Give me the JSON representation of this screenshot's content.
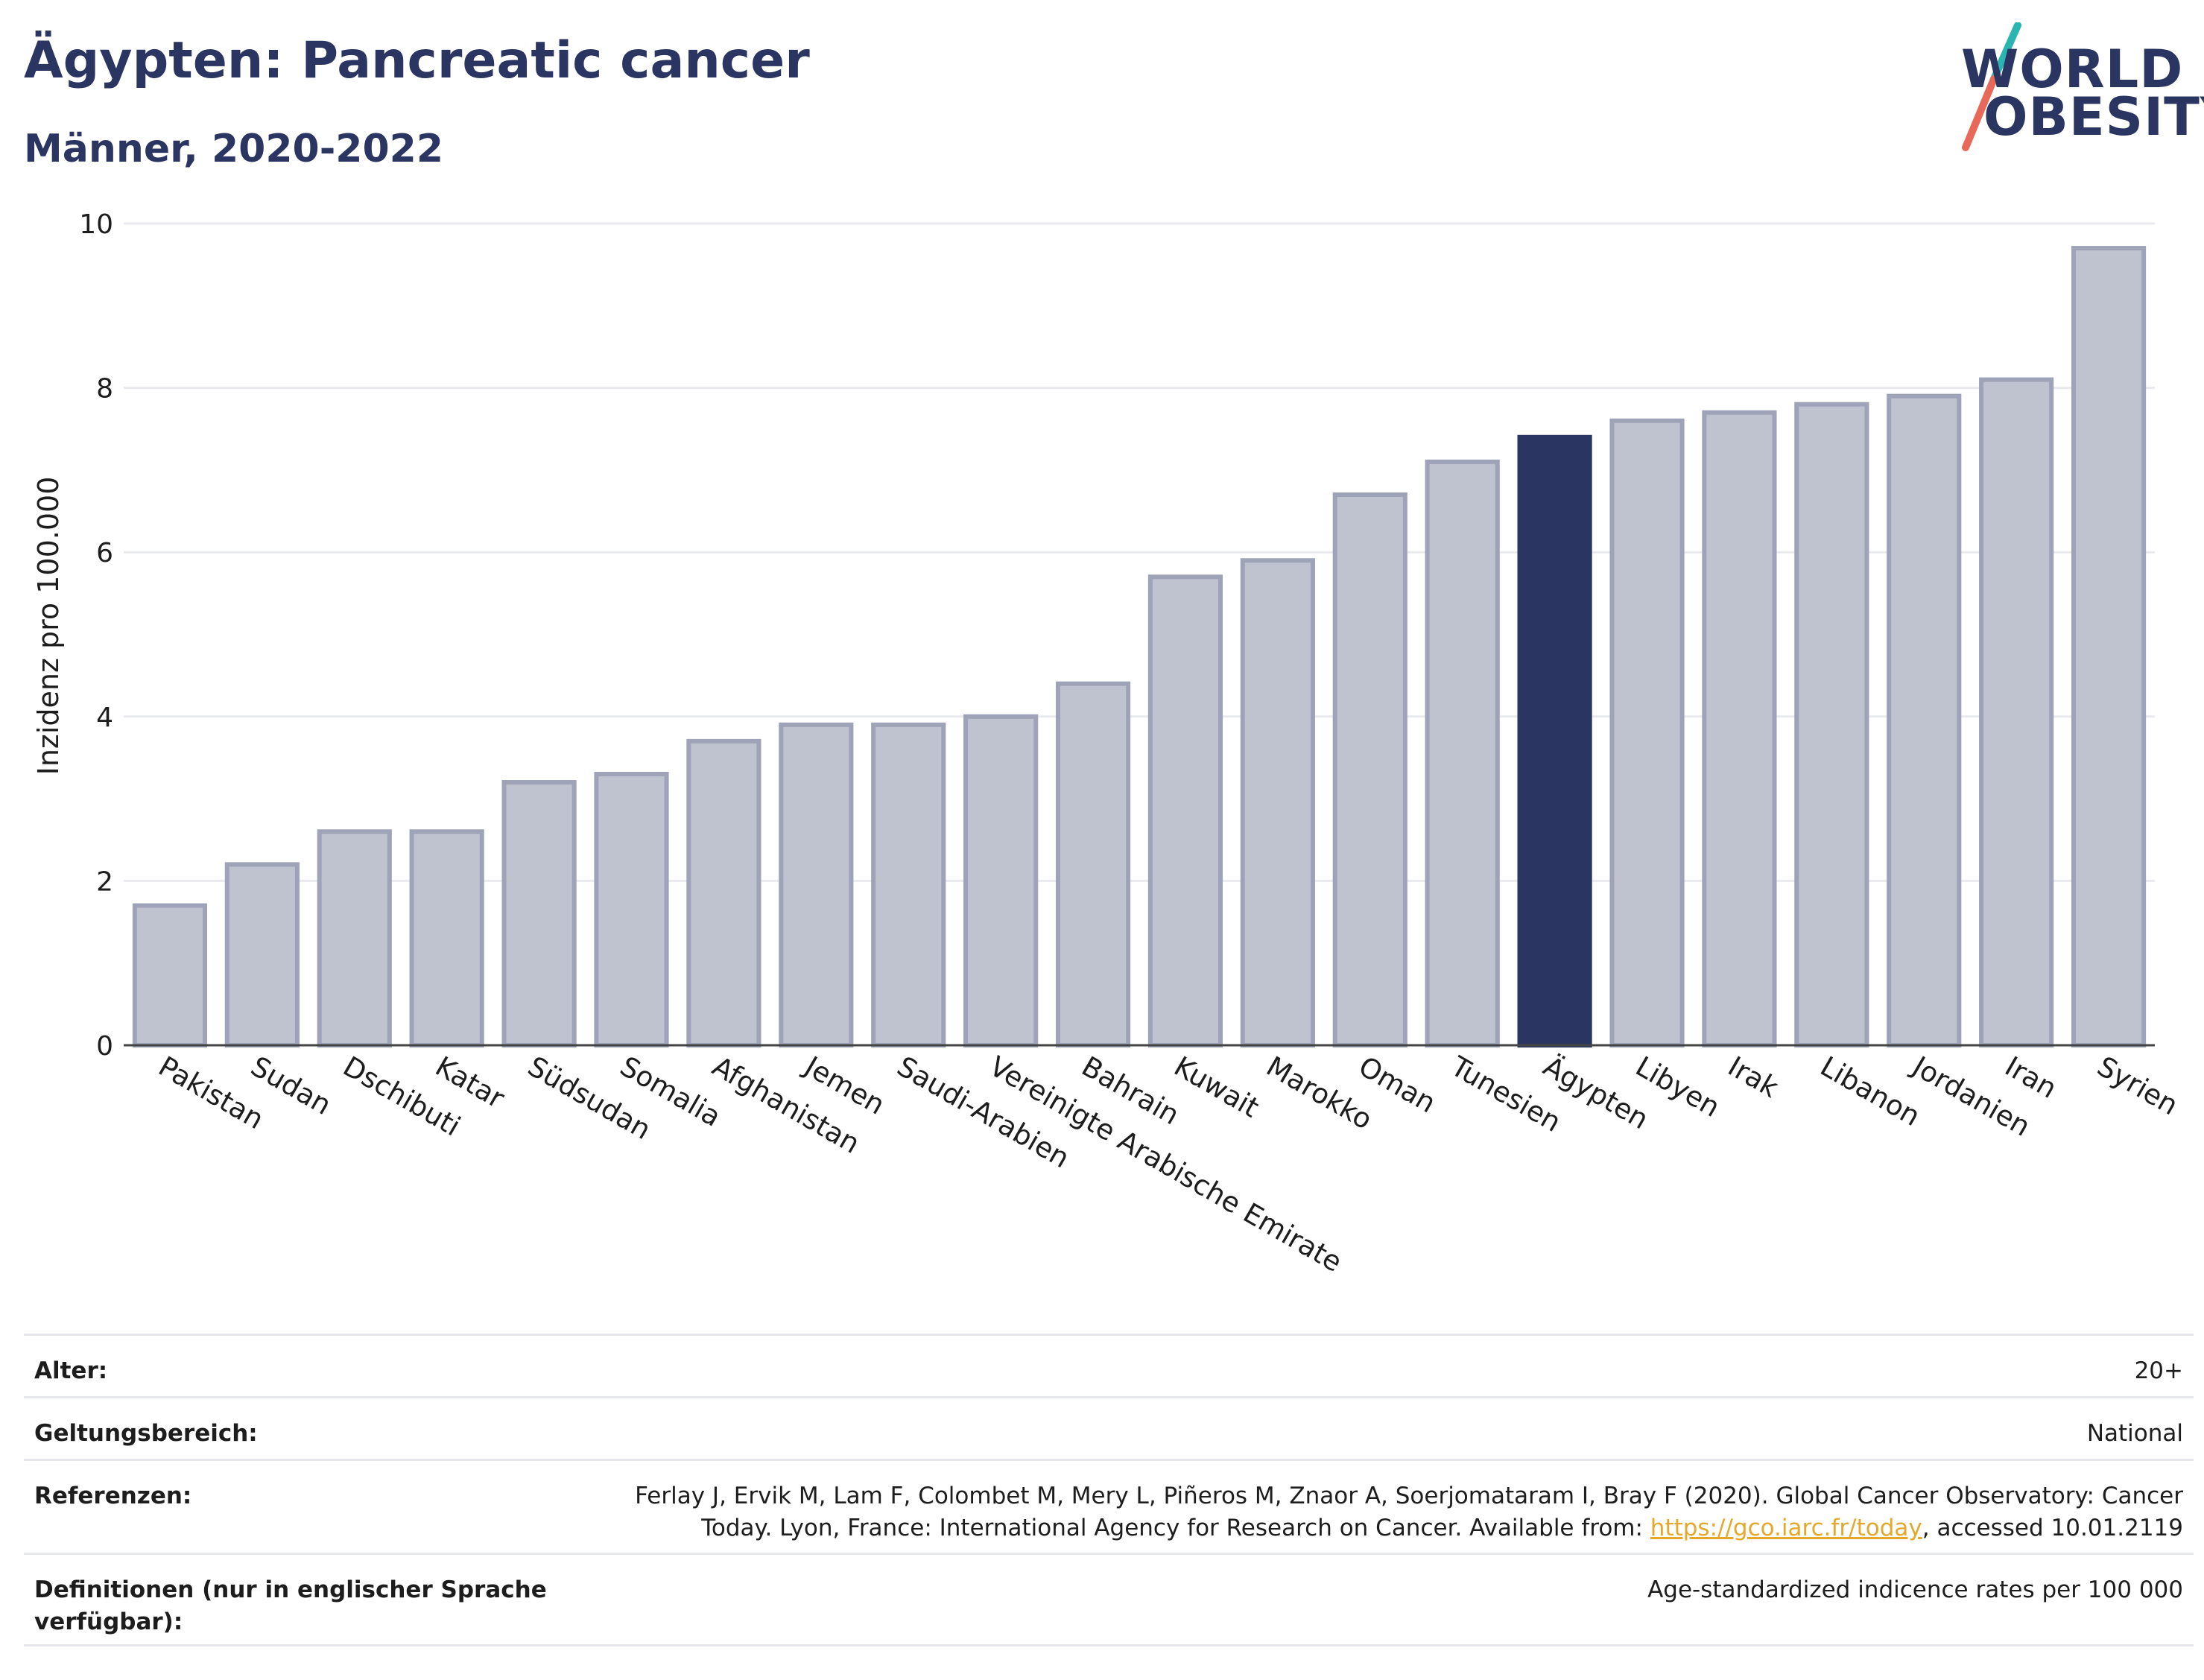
{
  "header": {
    "title": "Ägypten: Pancreatic cancer",
    "subtitle": "Männer, 2020-2022"
  },
  "logo": {
    "line1": "WORLD",
    "line2": "OBESITY",
    "colors": {
      "text": "#2b3561",
      "slash_top": "#2bb5b0",
      "slash_bottom": "#e8685a"
    }
  },
  "colors": {
    "highlight_bar": "#2b3561",
    "default_bar": "#bfc2cf",
    "default_bar_outline": "#9ea3b8",
    "grid": "#e9eaee"
  },
  "chart_data": {
    "type": "bar",
    "ylabel": "Inzidenz pro 100.000",
    "ylim": [
      0,
      10
    ],
    "yticks": [
      0,
      2,
      4,
      6,
      8,
      10
    ],
    "grid": true,
    "highlight": "Ägypten",
    "categories": [
      "Pakistan",
      "Sudan",
      "Dschibuti",
      "Katar",
      "Südsudan",
      "Somalia",
      "Afghanistan",
      "Jemen",
      "Saudi-Arabien",
      "Vereinigte Arabische Emirate",
      "Bahrain",
      "Kuwait",
      "Marokko",
      "Oman",
      "Tunesien",
      "Ägypten",
      "Libyen",
      "Irak",
      "Libanon",
      "Jordanien",
      "Iran",
      "Syrien"
    ],
    "values": [
      1.7,
      2.2,
      2.6,
      2.6,
      3.2,
      3.3,
      3.7,
      3.9,
      3.9,
      4.0,
      4.4,
      5.7,
      5.9,
      6.7,
      7.1,
      7.4,
      7.6,
      7.7,
      7.8,
      7.9,
      8.1,
      9.7
    ]
  },
  "meta": {
    "age_label": "Alter:",
    "age_value": "20+",
    "scope_label": "Geltungsbereich:",
    "scope_value": "National",
    "ref_label": "Referenzen:",
    "ref_text_1": "Ferlay J, Ervik M, Lam F, Colombet M, Mery L, Piñeros M, Znaor A, Soerjomataram I, Bray F (2020). Global Cancer Observatory: Cancer Today. Lyon, France: International Agency for Research on Cancer. Available from: ",
    "ref_link": "https://gco.iarc.fr/today",
    "ref_text_2": ", accessed 10.01.2119",
    "def_label": "Definitionen (nur in englischer Sprache verfügbar):",
    "def_value": "Age-standardized indicence rates per 100 000"
  }
}
